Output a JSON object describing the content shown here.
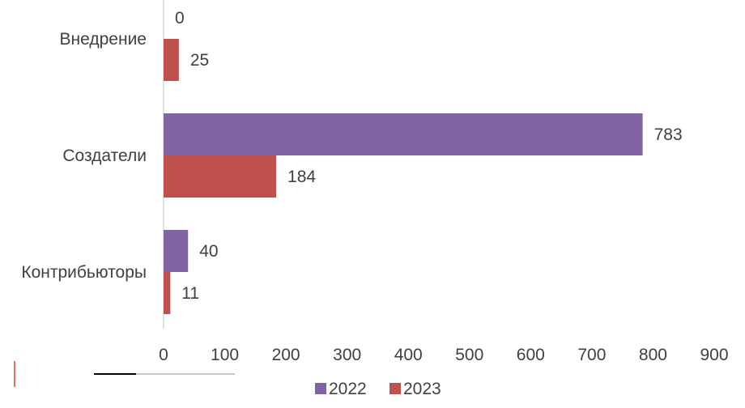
{
  "chart_data": {
    "type": "bar",
    "orientation": "horizontal",
    "categories": [
      "Внедрение",
      "Создатели",
      "Контрибьюторы"
    ],
    "series": [
      {
        "name": "2022",
        "color": "#8064a2",
        "values": [
          0,
          783,
          40
        ]
      },
      {
        "name": "2023",
        "color": "#c0504d",
        "values": [
          25,
          184,
          11
        ]
      }
    ],
    "xlim": [
      0,
      900
    ],
    "x_ticks": [
      "0",
      "100",
      "200",
      "300",
      "400",
      "500",
      "600",
      "700",
      "800",
      "900"
    ],
    "data_labels": [
      [
        "0",
        "783",
        "40"
      ],
      [
        "25",
        "184",
        "11"
      ]
    ],
    "grid": false,
    "legend_position": "bottom",
    "title": "",
    "xlabel": "",
    "ylabel": ""
  }
}
